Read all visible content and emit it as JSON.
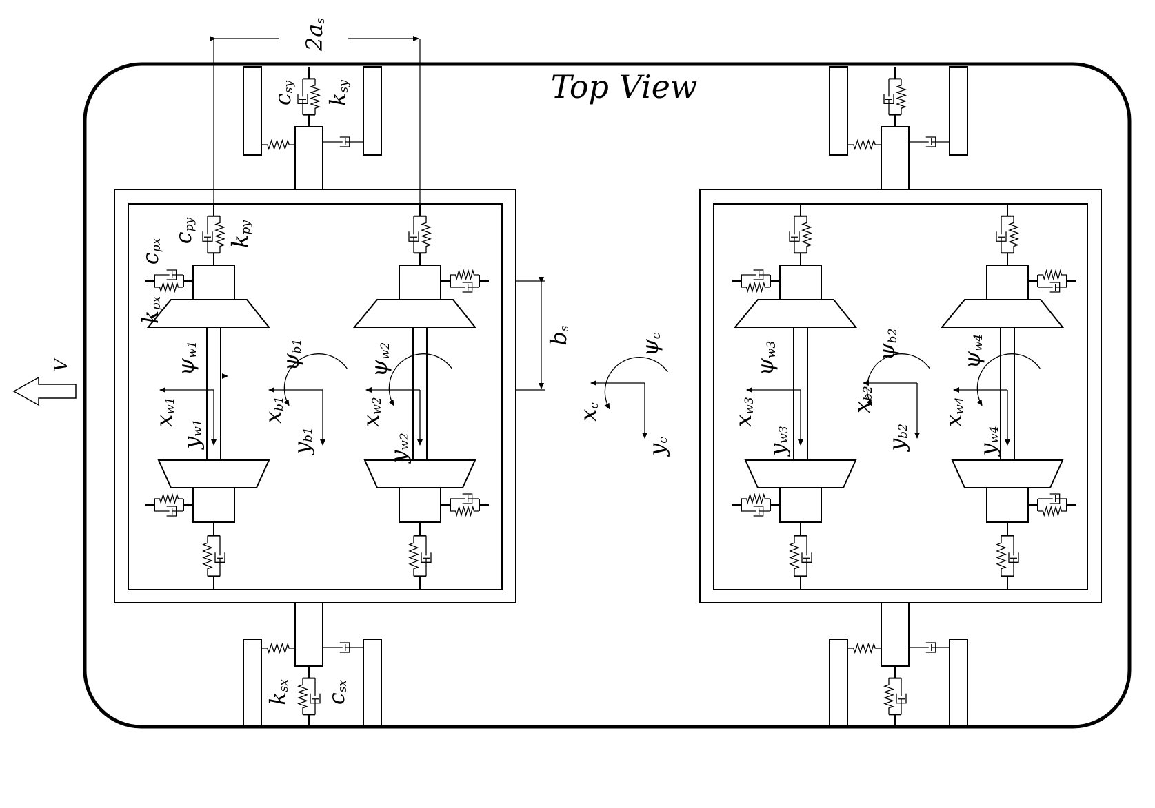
{
  "title": "Top View",
  "speed_label": "V",
  "dimension_labels": {
    "lateral_spacing": {
      "main": "2a",
      "sub": "s"
    },
    "longitudinal_spacing": {
      "main": "b",
      "sub": "s"
    }
  },
  "secondary_suspension": {
    "front_top": [
      {
        "main": "c",
        "sub": "sy"
      },
      {
        "main": "k",
        "sub": "sy"
      }
    ],
    "front_bottom": [
      {
        "main": "k",
        "sub": "sx"
      },
      {
        "main": "c",
        "sub": "sx"
      }
    ]
  },
  "primary_suspension": [
    {
      "main": "c",
      "sub": "py"
    },
    {
      "main": "k",
      "sub": "py"
    },
    {
      "main": "c",
      "sub": "px"
    },
    {
      "main": "k",
      "sub": "px"
    }
  ],
  "wheelsets": [
    {
      "psi": {
        "main": "ψ",
        "sub": "w1"
      },
      "x": {
        "main": "x",
        "sub": "w1"
      },
      "y": {
        "main": "y",
        "sub": "w1"
      }
    },
    {
      "psi": {
        "main": "ψ",
        "sub": "w2"
      },
      "x": {
        "main": "x",
        "sub": "w2"
      },
      "y": {
        "main": "y",
        "sub": "w2"
      }
    },
    {
      "psi": {
        "main": "ψ",
        "sub": "w3"
      },
      "x": {
        "main": "x",
        "sub": "w3"
      },
      "y": {
        "main": "y",
        "sub": "w3"
      }
    },
    {
      "psi": {
        "main": "ψ",
        "sub": "w4"
      },
      "x": {
        "main": "x",
        "sub": "w4"
      },
      "y": {
        "main": "y",
        "sub": "w4"
      }
    }
  ],
  "bogies": [
    {
      "psi": {
        "main": "ψ",
        "sub": "b1"
      },
      "x": {
        "main": "x",
        "sub": "b1"
      },
      "y": {
        "main": "y",
        "sub": "b1"
      }
    },
    {
      "psi": {
        "main": "ψ",
        "sub": "b2"
      },
      "x": {
        "main": "x",
        "sub": "b2"
      },
      "y": {
        "main": "y",
        "sub": "b2"
      }
    }
  ],
  "car_body": {
    "psi": {
      "main": "ψ",
      "sub": "c"
    },
    "x": {
      "main": "x",
      "sub": "c"
    },
    "y": {
      "main": "y",
      "sub": "c"
    }
  }
}
